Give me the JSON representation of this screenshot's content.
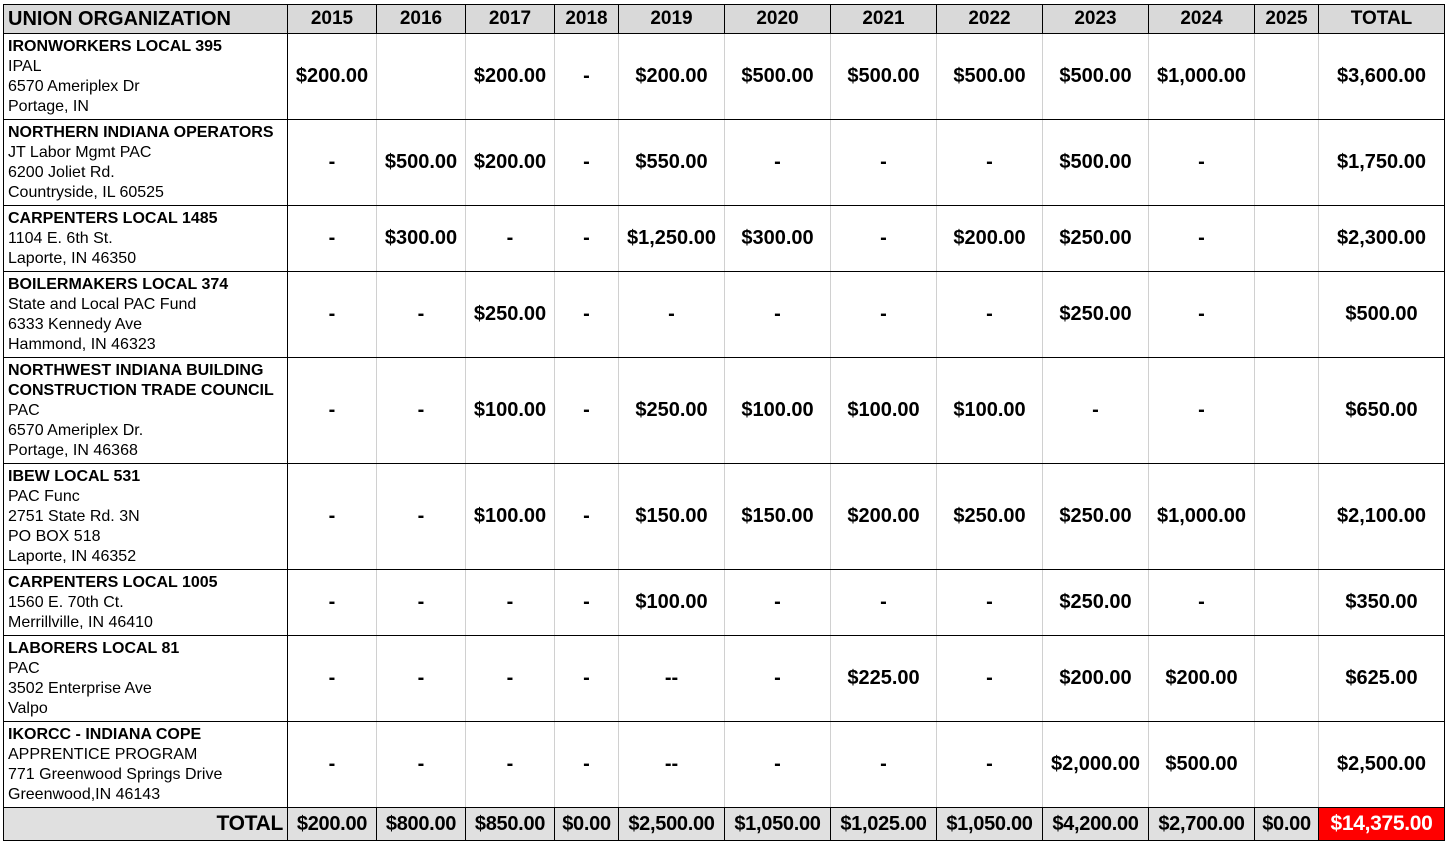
{
  "header": {
    "org": "UNION ORGANIZATION",
    "years": [
      "2015",
      "2016",
      "2017",
      "2018",
      "2019",
      "2020",
      "2021",
      "2022",
      "2023",
      "2024",
      "2025"
    ],
    "total": "TOTAL"
  },
  "rows": [
    {
      "lines": [
        "IRONWORKERS LOCAL 395",
        "IPAL",
        "6570 Ameriplex Dr",
        "Portage, IN"
      ],
      "values": [
        "$200.00",
        "",
        "$200.00",
        "-",
        "$200.00",
        "$500.00",
        "$500.00",
        "$500.00",
        "$500.00",
        "$1,000.00",
        ""
      ],
      "total": "$3,600.00"
    },
    {
      "lines": [
        "NORTHERN INDIANA OPERATORS",
        "JT Labor Mgmt PAC",
        "6200 Joliet Rd.",
        "Countryside, IL  60525"
      ],
      "values": [
        "-",
        "$500.00",
        "$200.00",
        "-",
        "$550.00",
        "-",
        "-",
        "-",
        "$500.00",
        "-",
        ""
      ],
      "total": "$1,750.00"
    },
    {
      "lines": [
        "CARPENTERS LOCAL 1485",
        "1104 E. 6th St.",
        "Laporte, IN 46350"
      ],
      "values": [
        "-",
        "$300.00",
        "-",
        "-",
        "$1,250.00",
        "$300.00",
        "-",
        "$200.00",
        "$250.00",
        "-",
        ""
      ],
      "total": "$2,300.00"
    },
    {
      "lines": [
        "BOILERMAKERS LOCAL 374",
        "State and Local PAC Fund",
        "6333 Kennedy Ave",
        "Hammond, IN 46323"
      ],
      "values": [
        "-",
        "-",
        "$250.00",
        "-",
        "-",
        "-",
        "-",
        "-",
        "$250.00",
        "-",
        ""
      ],
      "total": "$500.00"
    },
    {
      "lines": [
        "NORTHWEST INDIANA BUILDING CONSTRUCTION TRADE COUNCIL",
        "PAC",
        "6570 Ameriplex Dr.",
        "Portage, IN 46368"
      ],
      "values": [
        "-",
        "-",
        "$100.00",
        "-",
        "$250.00",
        "$100.00",
        "$100.00",
        "$100.00",
        "-",
        "-",
        ""
      ],
      "total": "$650.00"
    },
    {
      "lines": [
        "IBEW LOCAL 531",
        "PAC Func",
        "2751 State Rd. 3N",
        "PO BOX 518",
        "Laporte, IN 46352"
      ],
      "values": [
        "-",
        "-",
        "$100.00",
        "-",
        "$150.00",
        "$150.00",
        "$200.00",
        "$250.00",
        "$250.00",
        "$1,000.00",
        ""
      ],
      "total": "$2,100.00"
    },
    {
      "lines": [
        "CARPENTERS LOCAL 1005",
        "1560 E. 70th Ct.",
        "Merrillville, IN 46410"
      ],
      "values": [
        "-",
        "-",
        "-",
        "-",
        "$100.00",
        "-",
        "-",
        "-",
        "$250.00",
        "-",
        ""
      ],
      "total": "$350.00"
    },
    {
      "lines": [
        "LABORERS LOCAL 81",
        "PAC",
        "3502 Enterprise Ave",
        "Valpo"
      ],
      "values": [
        "-",
        "-",
        "-",
        "-",
        "--",
        "-",
        "$225.00",
        "-",
        "$200.00",
        "$200.00",
        ""
      ],
      "total": "$625.00"
    },
    {
      "lines": [
        "IKORCC - INDIANA COPE",
        "APPRENTICE PROGRAM",
        "771 Greenwood Springs Drive",
        "Greenwood,IN 46143"
      ],
      "values": [
        "-",
        "-",
        "-",
        "-",
        "--",
        "-",
        "-",
        "-",
        "$2,000.00",
        "$500.00",
        ""
      ],
      "total": "$2,500.00"
    }
  ],
  "footer": {
    "label": "TOTAL",
    "values": [
      "$200.00",
      "$800.00",
      "$850.00",
      "$0.00",
      "$2,500.00",
      "$1,050.00",
      "$1,025.00",
      "$1,050.00",
      "$4,200.00",
      "$2,700.00",
      "$0.00"
    ],
    "grand_total": "$14,375.00"
  },
  "colors": {
    "grand_total_bg": "#ff0000",
    "header_bg": "#d9d9d9",
    "footer_bg": "#e0e0e0"
  }
}
